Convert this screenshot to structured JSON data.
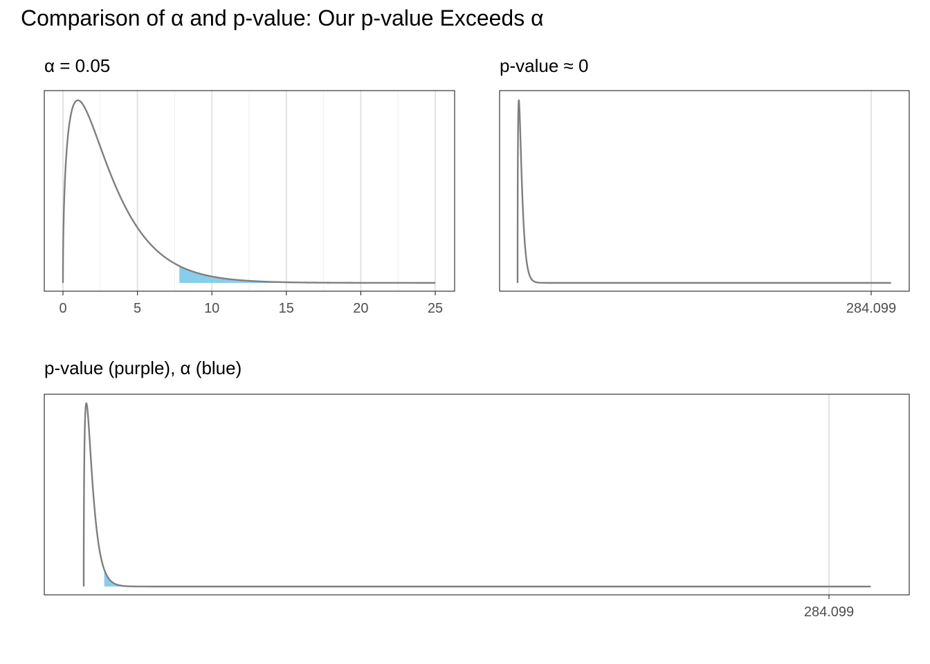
{
  "title": "Comparison of α and p-value: Our p-value Exceeds α",
  "colors": {
    "curve": "#7f7f7f",
    "alpha_fill": "#87ceeb",
    "grid_major": "#e3e3e3",
    "grid_minor": "#f1f1f1",
    "panel_border": "#333333",
    "axis_text": "#4d4d4d"
  },
  "chart_data": [
    {
      "type": "area",
      "distribution": "chi-square",
      "df": 3,
      "title": "α = 0.05",
      "xlim": [
        0,
        25
      ],
      "x_ticks": [
        0,
        5,
        10,
        15,
        20,
        25
      ],
      "x_tick_labels": [
        "0",
        "5",
        "10",
        "15",
        "20",
        "25"
      ],
      "alpha": 0.05,
      "critical_value": 7.815,
      "shaded": "alpha",
      "grid": true
    },
    {
      "type": "area",
      "distribution": "chi-square",
      "df": 3,
      "title": "p-value ≈ 0",
      "xlim": [
        0,
        284.099
      ],
      "x_ticks": [
        284.099
      ],
      "x_tick_labels": [
        "284.099"
      ],
      "p_value": 0,
      "test_statistic": 284.099,
      "grid": true
    },
    {
      "type": "area",
      "distribution": "chi-square",
      "df": 3,
      "title": "p-value (purple), α (blue)",
      "xlim": [
        0,
        300
      ],
      "x_ticks": [
        284.099
      ],
      "x_tick_labels": [
        "284.099"
      ],
      "alpha": 0.05,
      "critical_value": 7.815,
      "test_statistic": 284.099,
      "grid": true
    }
  ]
}
